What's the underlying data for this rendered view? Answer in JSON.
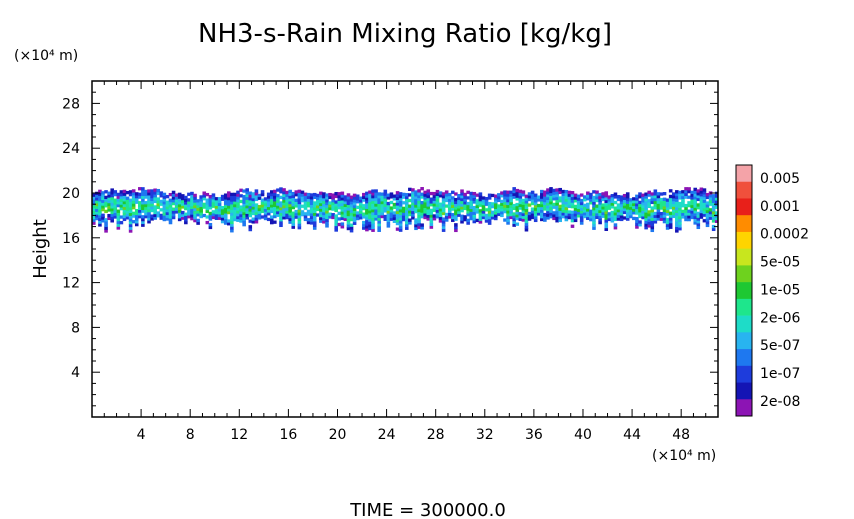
{
  "chart_data": {
    "type": "heatmap",
    "title": "NH3-s-Rain Mixing Ratio [kg/kg]",
    "ylabel": "Height",
    "y_unit": "(×10⁴ m)",
    "x_unit": "(×10⁴ m)",
    "footer": "TIME  =  300000.0",
    "xlim": [
      0,
      51
    ],
    "ylim": [
      0,
      30
    ],
    "x_ticks": [
      4,
      8,
      12,
      16,
      20,
      24,
      28,
      32,
      36,
      40,
      44,
      48
    ],
    "y_ticks": [
      4,
      8,
      12,
      16,
      20,
      24,
      28
    ],
    "x_tick_labels": [
      "4",
      "8",
      "12",
      "16",
      "20",
      "24",
      "28",
      "32",
      "36",
      "40",
      "44",
      "48"
    ],
    "y_tick_labels": [
      "4",
      "8",
      "12",
      "16",
      "20",
      "24",
      "28"
    ],
    "colorbar": {
      "labels": [
        "0.005",
        "0.001",
        "0.0002",
        "5e-05",
        "1e-05",
        "2e-06",
        "5e-07",
        "1e-07",
        "2e-08"
      ],
      "colors": [
        "#f4a3a8",
        "#f0503c",
        "#e8201a",
        "#ff8c00",
        "#ffd400",
        "#c8e61e",
        "#6ed21e",
        "#1ec832",
        "#1ee68c",
        "#1edcc8",
        "#28b4f0",
        "#1e78f0",
        "#1e3cdc",
        "#1414b4",
        "#8c14b4"
      ]
    },
    "band": {
      "base_km_x1e4": 16.5,
      "top_km_x1e4": 20.2,
      "description_values": "mixing ratio mostly 2e-08 to 5e-05 in layer 16.5–20 (×10⁴ m) across full x range"
    }
  }
}
